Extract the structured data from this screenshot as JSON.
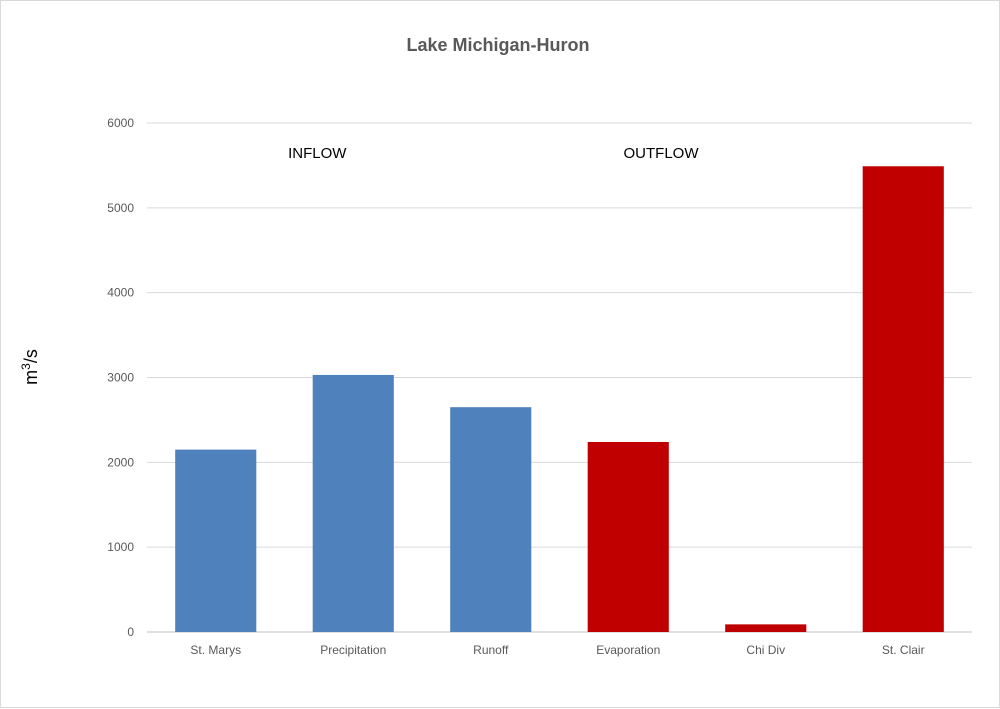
{
  "chart_data": {
    "type": "bar",
    "title": "Lake Michigan-Huron",
    "ylabel_base": "m",
    "ylabel_sup": "3",
    "ylabel_rest": "/s",
    "ylim": [
      0,
      6000
    ],
    "yticks": [
      "0",
      "1000",
      "2000",
      "3000",
      "4000",
      "5000",
      "6000"
    ],
    "ytick_values": [
      0,
      1000,
      2000,
      3000,
      4000,
      5000,
      6000
    ],
    "grid": true,
    "categories": [
      "St. Marys",
      "Precipitation",
      "Runoff",
      "Evaporation",
      "Chi Div",
      "St. Clair"
    ],
    "values": [
      2150,
      3030,
      2650,
      2240,
      90,
      5490
    ],
    "bar_colors": [
      "#4f81bd",
      "#4f81bd",
      "#4f81bd",
      "#c00000",
      "#c00000",
      "#c00000"
    ],
    "annotations": [
      {
        "text": "INFLOW",
        "anchor_category": 1
      },
      {
        "text": "OUTFLOW",
        "anchor_category": 3.5
      }
    ]
  }
}
